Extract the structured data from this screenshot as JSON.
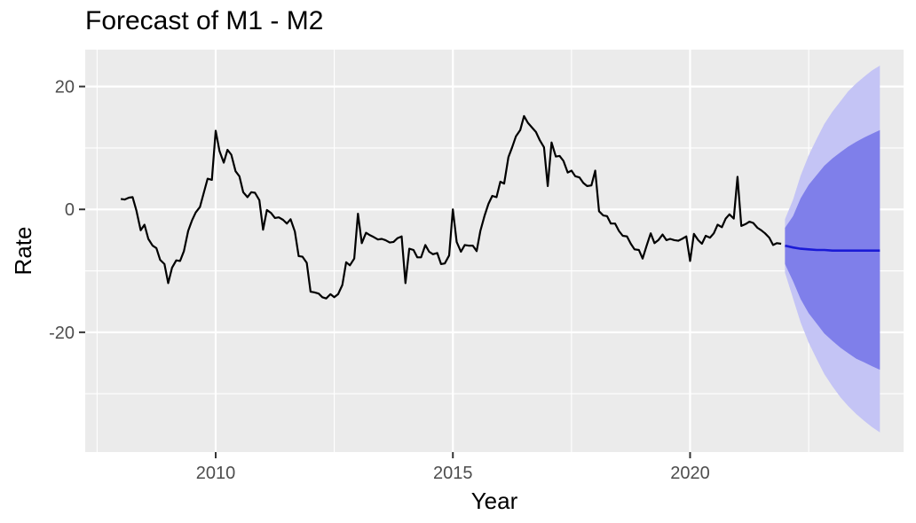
{
  "chart_data": {
    "type": "line",
    "title": "Forecast of M1 - M2",
    "xlabel": "Year",
    "ylabel": "Rate",
    "xlim": [
      2007.25,
      2024.5
    ],
    "ylim": [
      -39.5,
      26
    ],
    "x_ticks": [
      2010,
      2015,
      2020
    ],
    "x_tick_labels": [
      "2010",
      "2015",
      "2020"
    ],
    "y_ticks": [
      20,
      0,
      -20
    ],
    "y_tick_labels": [
      "20",
      "0",
      "-20"
    ],
    "grid": true,
    "legend": "none",
    "colors": {
      "panel": "#ebebeb",
      "grid_major": "#ffffff",
      "history_line": "#000000",
      "forecast_line": "#1a1ad6",
      "band_80": "#7f7fea",
      "band_95": "#c4c4f5"
    },
    "series": [
      {
        "role": "history",
        "x": [
          2008.0,
          2008.08,
          2008.17,
          2008.25,
          2008.33,
          2008.42,
          2008.5,
          2008.58,
          2008.67,
          2008.75,
          2008.83,
          2008.92,
          2009.0,
          2009.08,
          2009.17,
          2009.25,
          2009.33,
          2009.42,
          2009.5,
          2009.58,
          2009.67,
          2009.75,
          2009.83,
          2009.92,
          2010.0,
          2010.08,
          2010.17,
          2010.25,
          2010.33,
          2010.42,
          2010.5,
          2010.58,
          2010.67,
          2010.75,
          2010.83,
          2010.92,
          2011.0,
          2011.08,
          2011.17,
          2011.25,
          2011.33,
          2011.42,
          2011.5,
          2011.58,
          2011.67,
          2011.75,
          2011.83,
          2011.92,
          2012.0,
          2012.08,
          2012.17,
          2012.25,
          2012.33,
          2012.42,
          2012.5,
          2012.58,
          2012.67,
          2012.75,
          2012.83,
          2012.92,
          2013.0,
          2013.08,
          2013.17,
          2013.25,
          2013.33,
          2013.42,
          2013.5,
          2013.58,
          2013.67,
          2013.75,
          2013.83,
          2013.92,
          2014.0,
          2014.08,
          2014.17,
          2014.25,
          2014.33,
          2014.42,
          2014.5,
          2014.58,
          2014.67,
          2014.75,
          2014.83,
          2014.92,
          2015.0,
          2015.08,
          2015.17,
          2015.25,
          2015.33,
          2015.42,
          2015.5,
          2015.58,
          2015.67,
          2015.75,
          2015.83,
          2015.92,
          2016.0,
          2016.08,
          2016.17,
          2016.25,
          2016.33,
          2016.42,
          2016.5,
          2016.58,
          2016.67,
          2016.75,
          2016.83,
          2016.92,
          2017.0,
          2017.08,
          2017.17,
          2017.25,
          2017.33,
          2017.42,
          2017.5,
          2017.58,
          2017.67,
          2017.75,
          2017.83,
          2017.92,
          2018.0,
          2018.08,
          2018.17,
          2018.25,
          2018.33,
          2018.42,
          2018.5,
          2018.58,
          2018.67,
          2018.75,
          2018.83,
          2018.92,
          2019.0,
          2019.08,
          2019.17,
          2019.25,
          2019.33,
          2019.42,
          2019.5,
          2019.58,
          2019.67,
          2019.75,
          2019.83,
          2019.92,
          2020.0,
          2020.08,
          2020.17,
          2020.25,
          2020.33,
          2020.42,
          2020.5,
          2020.58,
          2020.67,
          2020.75,
          2020.83,
          2020.92,
          2021.0,
          2021.08,
          2021.17,
          2021.25,
          2021.33,
          2021.42,
          2021.5,
          2021.58,
          2021.67,
          2021.75,
          2021.83,
          2021.92
        ],
        "values": [
          1.7,
          1.6,
          1.9,
          2.0,
          -0.2,
          -3.4,
          -2.5,
          -4.8,
          -5.9,
          -6.3,
          -8.2,
          -8.9,
          -12.0,
          -9.5,
          -8.3,
          -8.4,
          -6.8,
          -3.5,
          -1.8,
          -0.5,
          0.4,
          2.7,
          5.0,
          4.8,
          12.8,
          9.5,
          7.6,
          9.7,
          8.9,
          6.2,
          5.4,
          2.8,
          2.0,
          2.8,
          2.7,
          1.5,
          -3.3,
          -0.1,
          -0.6,
          -1.4,
          -1.3,
          -1.7,
          -2.3,
          -1.6,
          -3.6,
          -7.6,
          -7.7,
          -8.7,
          -13.4,
          -13.5,
          -13.7,
          -14.3,
          -14.5,
          -13.8,
          -14.3,
          -13.8,
          -12.3,
          -8.6,
          -9.1,
          -8.0,
          -0.7,
          -5.5,
          -3.8,
          -4.2,
          -4.5,
          -4.9,
          -4.8,
          -5.0,
          -5.4,
          -5.3,
          -4.7,
          -4.4,
          -12.0,
          -6.4,
          -6.6,
          -7.8,
          -7.8,
          -5.8,
          -6.9,
          -7.3,
          -7.1,
          -8.9,
          -8.8,
          -7.5,
          0.0,
          -5.3,
          -6.9,
          -5.8,
          -5.9,
          -5.9,
          -6.8,
          -3.5,
          -1.0,
          0.9,
          2.2,
          2.0,
          4.5,
          4.2,
          8.5,
          10.1,
          11.9,
          12.9,
          15.2,
          14.1,
          13.3,
          12.6,
          11.3,
          10.1,
          3.8,
          10.9,
          8.6,
          8.7,
          7.9,
          6.0,
          6.3,
          5.4,
          5.2,
          4.3,
          3.8,
          3.9,
          6.3,
          -0.3,
          -1.0,
          -1.1,
          -2.3,
          -2.3,
          -3.5,
          -4.3,
          -4.4,
          -5.6,
          -6.5,
          -6.6,
          -8.0,
          -6.0,
          -3.9,
          -5.5,
          -5.0,
          -4.1,
          -5.0,
          -4.8,
          -5.0,
          -5.1,
          -4.8,
          -4.4,
          -8.4,
          -4.0,
          -5.0,
          -5.6,
          -4.3,
          -4.6,
          -3.9,
          -2.5,
          -2.9,
          -1.5,
          -0.8,
          -1.5,
          5.3,
          -2.7,
          -2.4,
          -2.0,
          -2.2,
          -3.0,
          -3.4,
          -3.9,
          -4.6,
          -5.8,
          -5.5,
          -5.6
        ]
      },
      {
        "role": "forecast",
        "x": [
          2022.0,
          2022.17,
          2022.33,
          2022.5,
          2022.67,
          2022.83,
          2023.0,
          2023.17,
          2023.33,
          2023.5,
          2023.67,
          2023.83,
          2024.0
        ],
        "values": [
          -5.9,
          -6.2,
          -6.4,
          -6.5,
          -6.6,
          -6.6,
          -6.7,
          -6.7,
          -6.7,
          -6.7,
          -6.7,
          -6.7,
          -6.7
        ],
        "lo80": [
          -8.9,
          -11.7,
          -14.6,
          -16.9,
          -18.6,
          -20.2,
          -21.4,
          -22.5,
          -23.4,
          -24.3,
          -24.9,
          -25.5,
          -26.1
        ],
        "hi80": [
          -3.0,
          -1.1,
          1.8,
          4.0,
          5.6,
          7.1,
          8.3,
          9.3,
          10.2,
          11.0,
          11.7,
          12.3,
          12.9
        ],
        "lo95": [
          -10.3,
          -14.5,
          -18.4,
          -21.7,
          -24.4,
          -26.8,
          -28.8,
          -30.6,
          -32.0,
          -33.3,
          -34.4,
          -35.4,
          -36.3
        ],
        "hi95": [
          -1.6,
          1.6,
          5.5,
          8.8,
          11.5,
          13.9,
          15.9,
          17.6,
          19.2,
          20.5,
          21.6,
          22.6,
          23.4
        ]
      }
    ]
  }
}
